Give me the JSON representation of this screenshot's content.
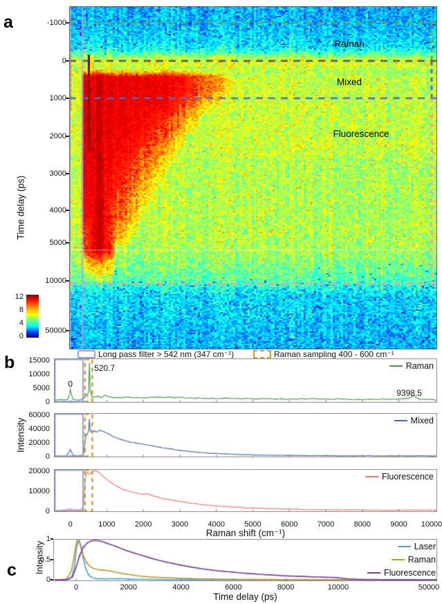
{
  "figure": {
    "background": "#ffffff"
  },
  "panels": {
    "a": {
      "label": "a",
      "ylabel": "Time delay (ps)",
      "yticks": [
        "-1000",
        "0",
        "1000",
        "2000",
        "3000",
        "4000",
        "5000",
        "10000",
        "50000"
      ],
      "region_labels": [
        "Raman",
        "Mixed",
        "Fluorescence"
      ],
      "colorbar_ticks": [
        "12",
        "8",
        "4",
        "0"
      ],
      "legend": [
        {
          "swatch": "blue-rect",
          "label": "Long pass filter > 542 nm (347 cm⁻¹)"
        },
        {
          "swatch": "orange-dashed-rect",
          "label": "Raman sampling 400 - 600 cm⁻¹"
        }
      ]
    },
    "b": {
      "label": "b",
      "ylabel": "Intensity",
      "xlabel": "Raman shift (cm⁻¹)",
      "xticks": [
        "0",
        "1000",
        "2000",
        "3000",
        "4000",
        "5000",
        "6000",
        "7000",
        "8000",
        "9000",
        "10000"
      ],
      "subplots": [
        {
          "legend": "Raman",
          "yticks": [
            "0",
            "5000",
            "10000",
            "15000"
          ]
        },
        {
          "legend": "Mixed",
          "yticks": [
            "0",
            "20000",
            "40000",
            "60000"
          ]
        },
        {
          "legend": "Fluorescence",
          "yticks": [
            "0",
            "10000",
            "20000"
          ]
        }
      ]
    },
    "c": {
      "label": "c",
      "ylabel": "Intensity",
      "xlabel": "Time delay (ps)",
      "xticks": [
        "0",
        "2000",
        "4000",
        "6000",
        "8000",
        "10000",
        "50000"
      ],
      "yticks": [
        "1",
        "0.5",
        "0"
      ],
      "legend": [
        "Laser",
        "Raman",
        "Fluorescence"
      ]
    }
  },
  "colors": {
    "raman_line": "#449A52",
    "mixed_line": "#3E6CB8",
    "fluorescence_line": "#F4756C",
    "laser_time": "#45A8DE",
    "raman_time": "#C49A2A",
    "fluorescence_time": "#7A3CA0",
    "long_pass_box": "#8FA3D6",
    "raman_sampling_box": "#D5992B",
    "dash_green": "#70A845",
    "dash_gray": "#4A5568",
    "dash_blue": "#5468C8",
    "dash_pink": "#F0A29C",
    "lavender_line": "#A7B2DC"
  },
  "chart_data": [
    {
      "id": "time_gated_raman_map",
      "panel": "a",
      "type": "heatmap",
      "ylabel": "Time delay (ps)",
      "yticks": [
        -1000,
        0,
        1000,
        2000,
        3000,
        4000,
        5000,
        10000,
        50000
      ],
      "x_range_cm1": [
        -100,
        10130
      ],
      "colorbar": {
        "min": 0,
        "max": 12,
        "ticks": [
          12,
          8,
          4,
          0
        ]
      },
      "regions": [
        {
          "label": "Raman",
          "from_ps": -1000,
          "to_ps": 0,
          "edge_color": "#70A845"
        },
        {
          "label": "Mixed",
          "from_ps": 0,
          "to_ps": 1000,
          "edge_color": "#5468C8"
        },
        {
          "label": "Fluorescence",
          "from_ps": 1000,
          "to_ps": 10000,
          "edge_color": "#F0A29C"
        }
      ],
      "features": {
        "laser_line_cm1": 0,
        "si_raman_line_cm1": 520.7,
        "long_pass_edge_cm1": 347,
        "intense_fluorescence_blob": "350-4600 cm⁻¹ at 0-1000 ps shrinking to ~1500 cm⁻¹ by 5000-10000 ps"
      }
    },
    {
      "id": "raman_spectrum",
      "panel": "b1",
      "type": "line",
      "name": "Raman",
      "color": "#449A52",
      "xlabel": "Raman shift (cm⁻¹)",
      "ylim": [
        0,
        15000
      ],
      "yticks": [
        0,
        5000,
        10000,
        15000
      ],
      "noise": 300,
      "x": [
        -420,
        -200,
        -60,
        0,
        60,
        200,
        300,
        380,
        430,
        470,
        500,
        521,
        545,
        580,
        650,
        750,
        850,
        950,
        1100,
        1300,
        1600,
        2000,
        2400,
        2800,
        3200,
        3700,
        4200,
        5000,
        5800,
        6600,
        7400,
        8200,
        9000,
        9250,
        9398,
        9550,
        9800,
        10000
      ],
      "y": [
        600,
        700,
        800,
        4300,
        900,
        750,
        900,
        1300,
        2600,
        2200,
        3800,
        14000,
        3600,
        2200,
        1500,
        1800,
        1500,
        2300,
        1500,
        1300,
        1500,
        1400,
        1600,
        1500,
        1300,
        1200,
        1300,
        1100,
        1000,
        950,
        900,
        850,
        900,
        1000,
        2300,
        900,
        800,
        750
      ],
      "annotations": [
        {
          "text": "0",
          "at_cm1": 0
        },
        {
          "text": "520.7",
          "at_cm1": 520.7
        },
        {
          "text": "9398.5",
          "at_cm1": 9398.5
        }
      ]
    },
    {
      "id": "mixed_spectrum",
      "panel": "b2",
      "type": "line",
      "name": "Mixed",
      "color": "#3E6CB8",
      "xlabel": "Raman shift (cm⁻¹)",
      "ylim": [
        0,
        60000
      ],
      "yticks": [
        0,
        20000,
        40000,
        60000
      ],
      "noise": 430,
      "x": [
        -420,
        -250,
        -100,
        0,
        80,
        200,
        300,
        360,
        400,
        430,
        470,
        500,
        521,
        545,
        580,
        650,
        720,
        800,
        900,
        1000,
        1100,
        1200,
        1400,
        1600,
        1800,
        2000,
        2200,
        2400,
        2700,
        3000,
        3400,
        3800,
        4200,
        4600,
        5000,
        5500,
        6000,
        7000,
        8000,
        9000,
        10000
      ],
      "y": [
        400,
        500,
        700,
        9500,
        1200,
        900,
        1100,
        2500,
        22000,
        30000,
        33000,
        36000,
        54000,
        36000,
        35500,
        36500,
        35000,
        37500,
        36000,
        33500,
        30500,
        28000,
        24000,
        21000,
        19000,
        17500,
        15500,
        13500,
        11000,
        8500,
        6200,
        4500,
        3400,
        2600,
        2100,
        1500,
        1200,
        900,
        800,
        700,
        650
      ]
    },
    {
      "id": "fluorescence_spectrum",
      "panel": "b3",
      "type": "line",
      "name": "Fluorescence",
      "color": "#F4756C",
      "xlabel": "Raman shift (cm⁻¹)",
      "ylim": [
        0,
        20000
      ],
      "yticks": [
        0,
        10000,
        20000
      ],
      "noise": 210,
      "x": [
        -420,
        -250,
        -100,
        0,
        100,
        200,
        300,
        360,
        400,
        430,
        470,
        520,
        570,
        620,
        680,
        740,
        800,
        870,
        950,
        1050,
        1150,
        1300,
        1450,
        1600,
        1800,
        2000,
        2100,
        2250,
        2400,
        2600,
        2800,
        3000,
        3300,
        3600,
        4000,
        4400,
        4800,
        5200,
        5700,
        6200,
        7000,
        8000,
        9000,
        10000
      ],
      "y": [
        250,
        350,
        600,
        900,
        500,
        450,
        600,
        3000,
        14000,
        18500,
        19300,
        18300,
        19000,
        19600,
        20000,
        19700,
        19000,
        17800,
        16400,
        15000,
        13800,
        12000,
        10700,
        9800,
        8900,
        8300,
        8600,
        7600,
        6900,
        6000,
        5300,
        4700,
        3900,
        3200,
        2500,
        2000,
        1600,
        1300,
        1000,
        800,
        600,
        480,
        430,
        400
      ]
    },
    {
      "id": "temporal_profiles",
      "panel": "c",
      "type": "line",
      "xlabel": "Time delay (ps)",
      "ylabel": "Intensity",
      "xticks": [
        0,
        2000,
        4000,
        6000,
        8000,
        10000,
        50000
      ],
      "yticks": [
        0,
        0.5,
        1
      ],
      "ylim": [
        0,
        1.05
      ],
      "series": [
        {
          "name": "Laser",
          "color": "#45A8DE",
          "noise": 0.004,
          "x": [
            -800,
            -400,
            -250,
            -150,
            -60,
            0,
            60,
            120,
            200,
            280,
            360,
            450,
            550,
            700,
            850,
            1000,
            1150,
            1300,
            1500,
            1700,
            1900,
            2200,
            2600,
            3000,
            3500,
            4000,
            4500,
            5000,
            6000,
            50000
          ],
          "y": [
            0,
            0.004,
            0.02,
            0.09,
            0.35,
            0.72,
            0.95,
            1.0,
            0.82,
            0.52,
            0.3,
            0.16,
            0.08,
            0.035,
            0.02,
            0.03,
            0.02,
            0.028,
            0.022,
            0.03,
            0.02,
            0.015,
            0.012,
            0.008,
            0.005,
            0.003,
            0.002,
            0.001,
            0,
            0
          ]
        },
        {
          "name": "Raman",
          "color": "#C49A2A",
          "noise": 0.004,
          "x": [
            -800,
            -500,
            -380,
            -280,
            -180,
            -90,
            -20,
            40,
            110,
            190,
            280,
            380,
            500,
            620,
            760,
            900,
            1050,
            1250,
            1450,
            1700,
            2000,
            2300,
            2700,
            3100,
            3600,
            4100,
            4700,
            5400,
            6200,
            7000,
            8000,
            9000,
            10000,
            12000,
            50000
          ],
          "y": [
            0,
            0.005,
            0.02,
            0.08,
            0.22,
            0.52,
            0.85,
            1.0,
            0.97,
            0.8,
            0.62,
            0.46,
            0.36,
            0.3,
            0.27,
            0.25,
            0.245,
            0.23,
            0.2,
            0.165,
            0.135,
            0.105,
            0.08,
            0.062,
            0.048,
            0.036,
            0.026,
            0.018,
            0.012,
            0.009,
            0.006,
            0.004,
            0.003,
            0.001,
            0
          ]
        },
        {
          "name": "Fluorescence",
          "color": "#7A3CA0",
          "noise": 0.002,
          "x": [
            -800,
            -400,
            -250,
            -120,
            0,
            120,
            260,
            400,
            550,
            700,
            850,
            1000,
            1200,
            1500,
            1800,
            2200,
            2600,
            3000,
            3500,
            4000,
            4500,
            5000,
            5600,
            6200,
            7000,
            8000,
            9000,
            10000,
            11500,
            13000,
            15000,
            20000,
            30000,
            50000
          ],
          "y": [
            0,
            0.003,
            0.02,
            0.1,
            0.32,
            0.58,
            0.8,
            0.92,
            0.98,
            1.0,
            0.99,
            0.97,
            0.92,
            0.85,
            0.77,
            0.68,
            0.6,
            0.52,
            0.44,
            0.37,
            0.31,
            0.26,
            0.215,
            0.18,
            0.14,
            0.1,
            0.075,
            0.055,
            0.04,
            0.028,
            0.018,
            0.008,
            0.002,
            0
          ]
        }
      ]
    }
  ],
  "overlays": {
    "long_pass": {
      "label": "Long pass filter > 542 nm (347 cm⁻¹)",
      "from_cm1": -430,
      "to_cm1": 347,
      "color": "#8FA3D6"
    },
    "raman_sampling": {
      "label": "Raman sampling 400 - 600 cm⁻¹",
      "from_cm1": 400,
      "to_cm1": 600,
      "color": "#D5992B"
    }
  }
}
